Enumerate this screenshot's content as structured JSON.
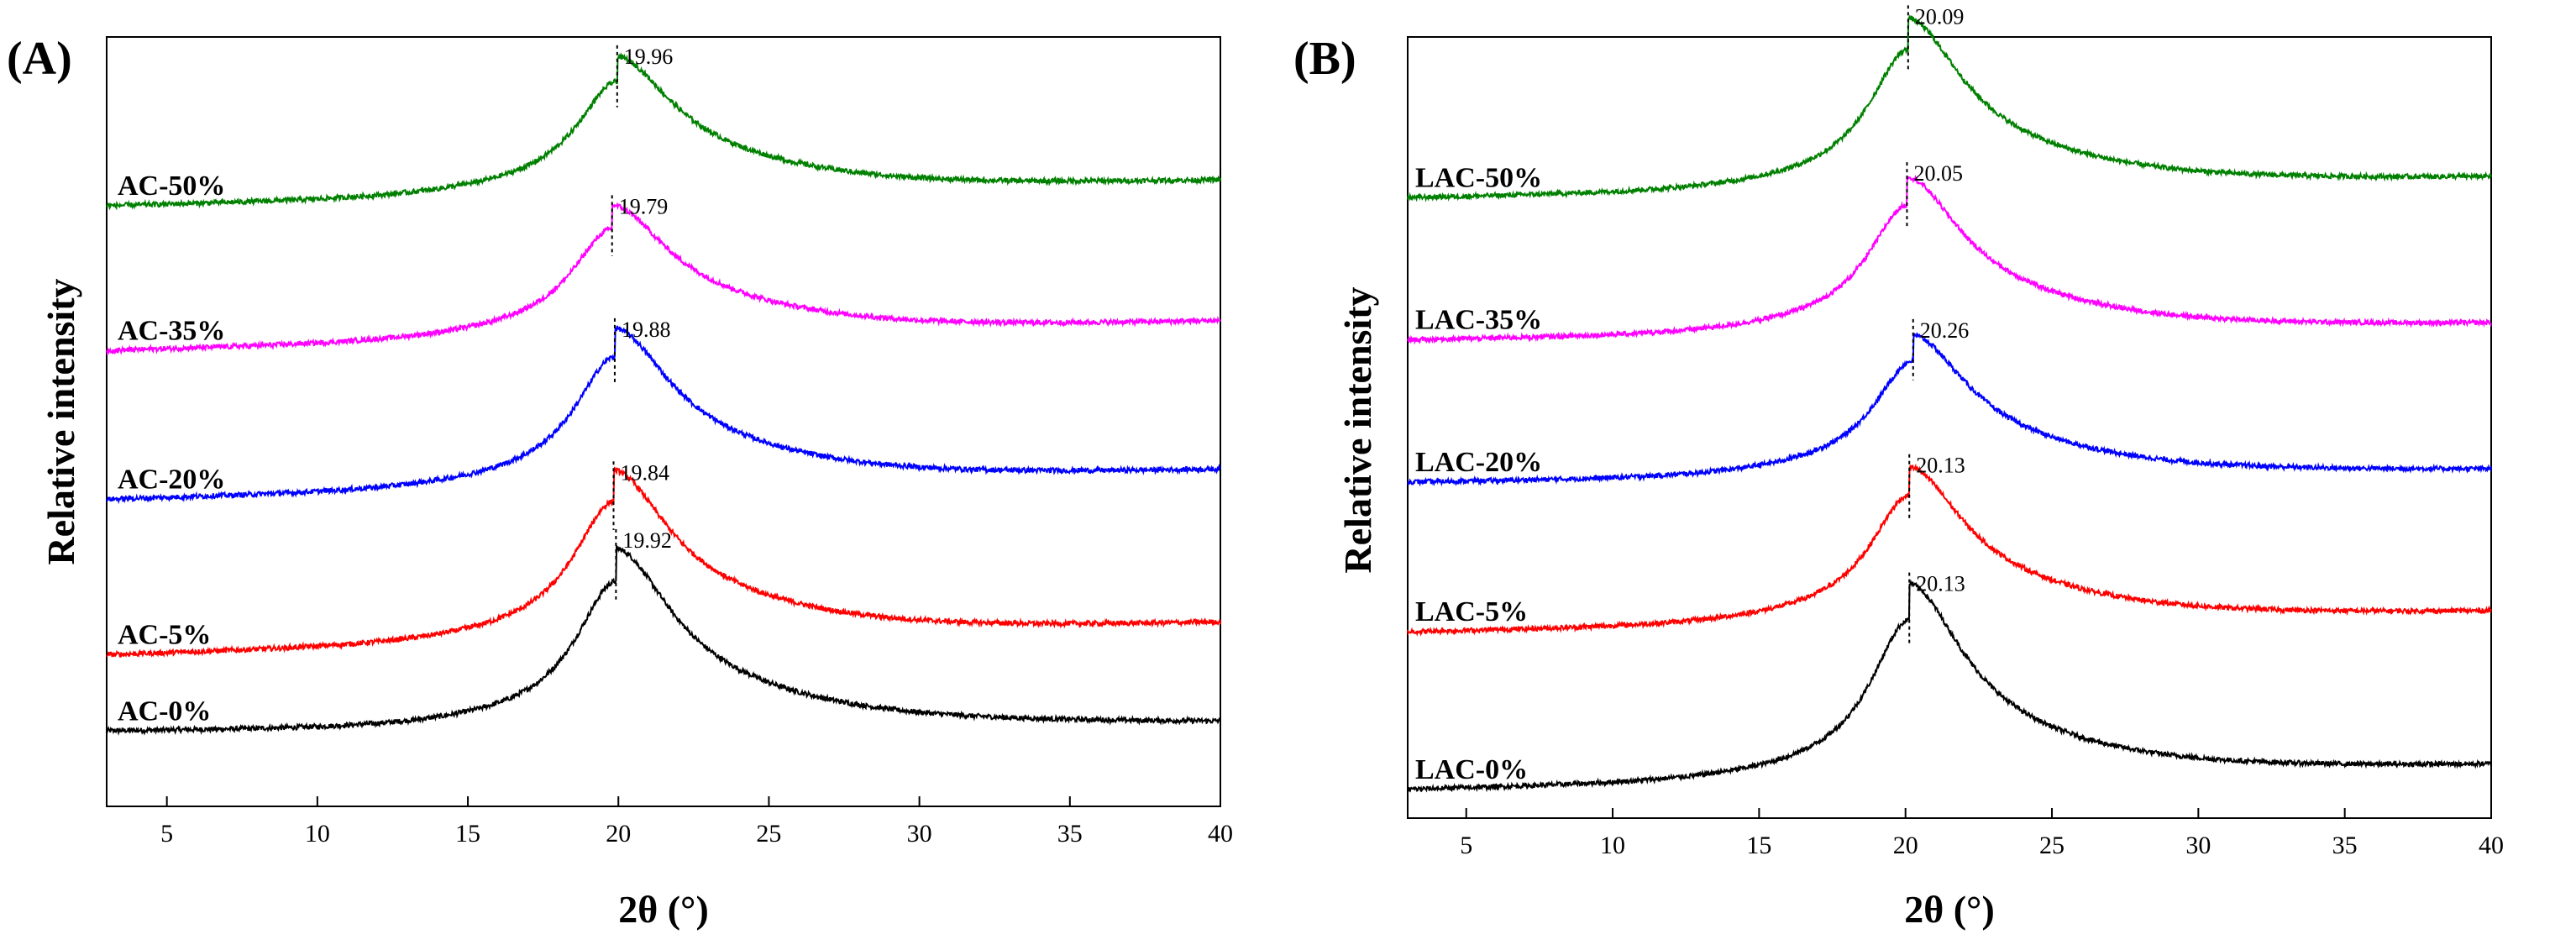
{
  "chart_data": [
    {
      "type": "line",
      "panel_label": "(A)",
      "xlabel": "2θ (°)",
      "ylabel": "Relative intensity",
      "xlim": [
        3,
        40
      ],
      "xticks": [
        5,
        10,
        15,
        20,
        25,
        30,
        35,
        40
      ],
      "yticks_shown": false,
      "grid": false,
      "series": [
        {
          "name": "AC-0%",
          "color": "#000000",
          "peak_position": 19.92,
          "peak_label": "19.92",
          "baseline_left": 0.9,
          "baseline_right": 1.0,
          "peak_intensity": 1.6
        },
        {
          "name": "AC-5%",
          "color": "#ff0000",
          "peak_position": 19.84,
          "peak_label": "19.84",
          "baseline_left": 1.82,
          "baseline_right": 2.2,
          "peak_intensity": 1.52
        },
        {
          "name": "AC-20%",
          "color": "#0000ff",
          "peak_position": 19.88,
          "peak_label": "19.88",
          "baseline_left": 3.7,
          "baseline_right": 4.05,
          "peak_intensity": 1.4
        },
        {
          "name": "AC-35%",
          "color": "#ff00ff",
          "peak_position": 19.79,
          "peak_label": "19.79",
          "baseline_left": 5.5,
          "baseline_right": 5.85,
          "peak_intensity": 1.15
        },
        {
          "name": "AC-50%",
          "color": "#008000",
          "peak_position": 19.96,
          "peak_label": "19.96",
          "baseline_left": 7.25,
          "baseline_right": 7.55,
          "peak_intensity": 1.2
        }
      ]
    },
    {
      "type": "line",
      "panel_label": "(B)",
      "xlabel": "2θ (°)",
      "ylabel": "Relative intensity",
      "xlim": [
        3,
        40
      ],
      "xticks": [
        5,
        10,
        15,
        20,
        25,
        30,
        35,
        40
      ],
      "yticks_shown": false,
      "grid": false,
      "series": [
        {
          "name": "LAC-0%",
          "color": "#000000",
          "peak_position": 20.13,
          "peak_label": "20.13",
          "baseline_left": 0.35,
          "baseline_right": 0.65,
          "peak_intensity": 1.85
        },
        {
          "name": "LAC-5%",
          "color": "#ff0000",
          "peak_position": 20.13,
          "peak_label": "20.13",
          "baseline_left": 2.35,
          "baseline_right": 2.6,
          "peak_intensity": 1.45
        },
        {
          "name": "LAC-20%",
          "color": "#0000ff",
          "peak_position": 20.26,
          "peak_label": "20.26",
          "baseline_left": 4.25,
          "baseline_right": 4.4,
          "peak_intensity": 1.3
        },
        {
          "name": "LAC-35%",
          "color": "#ff00ff",
          "peak_position": 20.05,
          "peak_label": "20.05",
          "baseline_left": 6.05,
          "baseline_right": 6.25,
          "peak_intensity": 1.45
        },
        {
          "name": "LAC-50%",
          "color": "#008000",
          "peak_position": 20.09,
          "peak_label": "20.09",
          "baseline_left": 7.85,
          "baseline_right": 8.1,
          "peak_intensity": 1.6
        }
      ]
    }
  ]
}
